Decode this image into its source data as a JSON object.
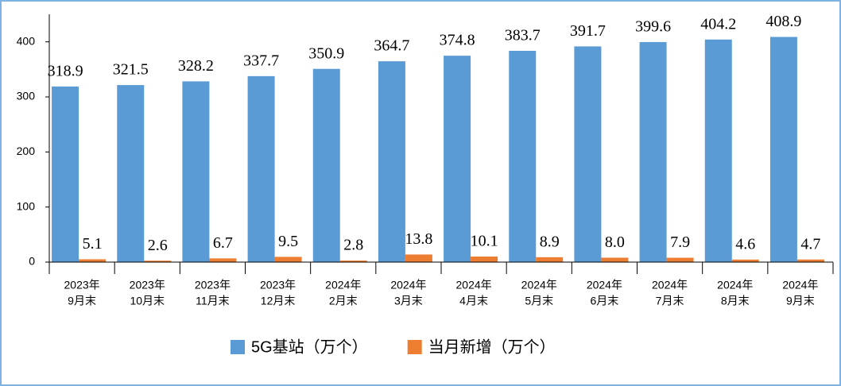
{
  "chart_data": {
    "type": "bar",
    "categories": [
      [
        "2023年",
        "9月末"
      ],
      [
        "2023年",
        "10月末"
      ],
      [
        "2023年",
        "11月末"
      ],
      [
        "2023年",
        "12月末"
      ],
      [
        "2024年",
        "2月末"
      ],
      [
        "2024年",
        "3月末"
      ],
      [
        "2024年",
        "4月末"
      ],
      [
        "2024年",
        "5月末"
      ],
      [
        "2024年",
        "6月末"
      ],
      [
        "2024年",
        "7月末"
      ],
      [
        "2024年",
        "8月末"
      ],
      [
        "2024年",
        "9月末"
      ]
    ],
    "series": [
      {
        "name": "5G基站（万个）",
        "color": "#5b9bd5",
        "values": [
          318.9,
          321.5,
          328.2,
          337.7,
          350.9,
          364.7,
          374.8,
          383.7,
          391.7,
          399.6,
          404.2,
          408.9
        ],
        "value_labels": [
          "318.9",
          "321.5",
          "328.2",
          "337.7",
          "350.9",
          "364.7",
          "374.8",
          "383.7",
          "391.7",
          "399.6",
          "404.2",
          "408.9"
        ]
      },
      {
        "name": "当月新增（万个）",
        "color": "#ed7d31",
        "values": [
          5.1,
          2.6,
          6.7,
          9.5,
          2.8,
          13.8,
          10.1,
          8.9,
          8.0,
          7.9,
          4.6,
          4.7
        ],
        "value_labels": [
          "5.1",
          "2.6",
          "6.7",
          "9.5",
          "2.8",
          "13.8",
          "10.1",
          "8.9",
          "8.0",
          "7.9",
          "4.6",
          "4.7"
        ]
      }
    ],
    "ylim": [
      0,
      450
    ],
    "yticks": [
      0,
      100,
      200,
      300,
      400
    ],
    "grid": false,
    "legend": "bottom"
  }
}
